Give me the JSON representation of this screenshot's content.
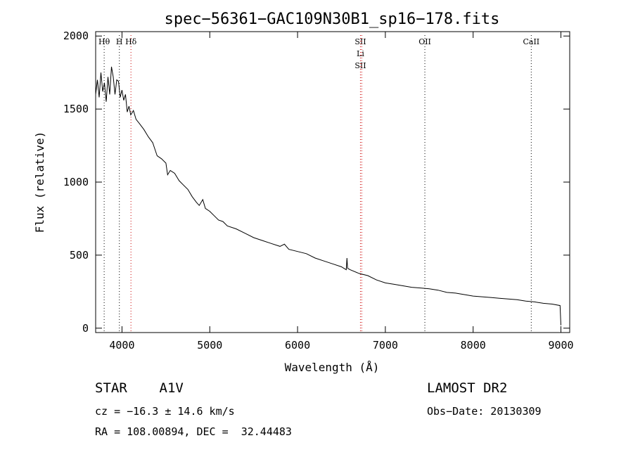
{
  "chart_data": {
    "type": "line",
    "title": "spec−56361−GAC109N30B1_sp16−178.fits",
    "xlabel": "Wavelength (Å)",
    "ylabel": "Flux (relative)",
    "xlim": [
      3700,
      9100
    ],
    "ylim": [
      -30,
      2030
    ],
    "xticks": [
      4000,
      5000,
      6000,
      7000,
      8000,
      9000
    ],
    "yticks": [
      0,
      500,
      1000,
      1500,
      2000
    ],
    "grid": false,
    "series": [
      {
        "x": [
          3700,
          3720,
          3740,
          3760,
          3780,
          3800,
          3820,
          3840,
          3860,
          3880,
          3900,
          3920,
          3940,
          3960,
          3980,
          4000,
          4020,
          4040,
          4060,
          4080,
          4100,
          4130,
          4160,
          4200,
          4250,
          4300,
          4350,
          4400,
          4450,
          4500,
          4520,
          4550,
          4600,
          4650,
          4700,
          4750,
          4800,
          4850,
          4880,
          4920,
          4950,
          5000,
          5050,
          5100,
          5150,
          5200,
          5300,
          5400,
          5500,
          5600,
          5700,
          5800,
          5850,
          5900,
          6000,
          6100,
          6200,
          6300,
          6400,
          6500,
          6540,
          6555,
          6563,
          6570,
          6600,
          6700,
          6800,
          6900,
          7000,
          7100,
          7200,
          7300,
          7400,
          7500,
          7600,
          7700,
          7800,
          7900,
          8000,
          8100,
          8200,
          8300,
          8400,
          8500,
          8600,
          8700,
          8800,
          8900,
          8990,
          9000
        ],
        "y": [
          1600,
          1700,
          1580,
          1750,
          1620,
          1680,
          1550,
          1720,
          1600,
          1790,
          1720,
          1600,
          1700,
          1690,
          1580,
          1630,
          1560,
          1600,
          1480,
          1520,
          1460,
          1490,
          1430,
          1400,
          1360,
          1310,
          1270,
          1180,
          1160,
          1130,
          1050,
          1080,
          1060,
          1010,
          980,
          950,
          900,
          860,
          840,
          880,
          820,
          800,
          770,
          740,
          730,
          700,
          680,
          650,
          620,
          600,
          580,
          560,
          575,
          540,
          525,
          510,
          480,
          460,
          440,
          420,
          405,
          400,
          480,
          410,
          400,
          375,
          360,
          330,
          310,
          300,
          290,
          280,
          275,
          270,
          260,
          245,
          240,
          230,
          220,
          215,
          210,
          205,
          200,
          195,
          185,
          180,
          170,
          165,
          155,
          20
        ]
      }
    ],
    "lines": [
      {
        "x": 3797,
        "labels": [
          "Hθ"
        ],
        "color": "#000000"
      },
      {
        "x": 3970,
        "labels": [
          "H"
        ],
        "color": "#000000"
      },
      {
        "x": 4102,
        "labels": [
          "Hδ"
        ],
        "color": "#cc0000"
      },
      {
        "x": 6716,
        "labels": [
          "SII",
          "Li",
          "SII"
        ],
        "color": "#cc0000"
      },
      {
        "x": 6731,
        "labels": [],
        "color": "#cc0000"
      },
      {
        "x": 7450,
        "labels": [
          "OII"
        ],
        "color": "#000000"
      },
      {
        "x": 8662,
        "labels": [
          "CaII"
        ],
        "color": "#000000"
      }
    ]
  },
  "info": {
    "object": "STAR    A1V",
    "survey": "LAMOST DR2",
    "cz": "cz = −16.3 ± 14.6 km/s",
    "obsdate": "Obs−Date: 20130309",
    "radec": "RA = 108.00894, DEC =  32.44483"
  }
}
